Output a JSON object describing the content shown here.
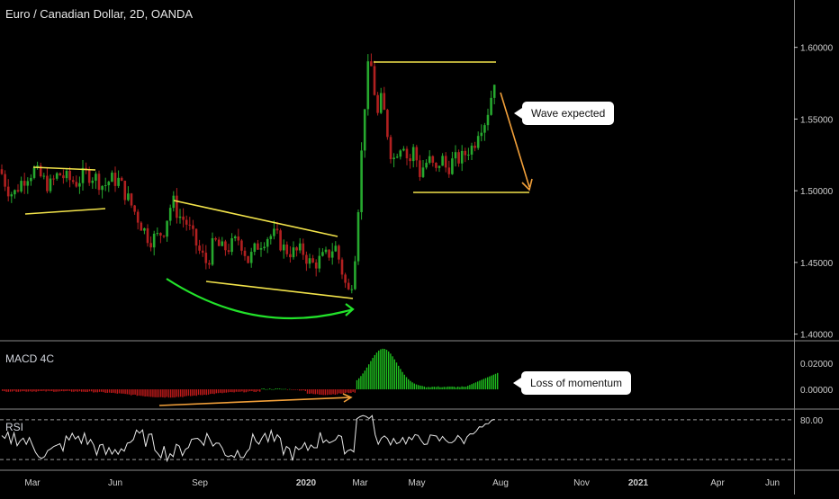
{
  "chart_data": {
    "type": "candlestick",
    "title": "Euro / Canadian Dollar, 2D, OANDA",
    "y_axis": {
      "ticks": [
        1.4,
        1.45,
        1.5,
        1.55,
        1.6
      ],
      "tick_labels": [
        "1.40000",
        "1.45000",
        "1.50000",
        "1.55000",
        "1.60000"
      ],
      "range": [
        1.396,
        1.628
      ]
    },
    "x_axis": {
      "tick_labels": [
        "Mar",
        "Jun",
        "Sep",
        "2020",
        "Mar",
        "May",
        "Aug",
        "Nov",
        "2021",
        "Apr",
        "Jun"
      ]
    },
    "price_path": [
      [
        0,
        1.515
      ],
      [
        8,
        1.502
      ],
      [
        15,
        1.497
      ],
      [
        22,
        1.505
      ],
      [
        30,
        1.511
      ],
      [
        38,
        1.514
      ],
      [
        46,
        1.509
      ],
      [
        55,
        1.503
      ],
      [
        65,
        1.512
      ],
      [
        75,
        1.508
      ],
      [
        85,
        1.506
      ],
      [
        95,
        1.512
      ],
      [
        105,
        1.51
      ],
      [
        115,
        1.503
      ],
      [
        123,
        1.508
      ],
      [
        132,
        1.507
      ],
      [
        140,
        1.497
      ],
      [
        150,
        1.485
      ],
      [
        158,
        1.475
      ],
      [
        166,
        1.466
      ],
      [
        175,
        1.468
      ],
      [
        182,
        1.473
      ],
      [
        188,
        1.487
      ],
      [
        192,
        1.493
      ],
      [
        198,
        1.483
      ],
      [
        206,
        1.479
      ],
      [
        214,
        1.468
      ],
      [
        222,
        1.457
      ],
      [
        230,
        1.449
      ],
      [
        238,
        1.465
      ],
      [
        246,
        1.459
      ],
      [
        256,
        1.461
      ],
      [
        266,
        1.467
      ],
      [
        276,
        1.451
      ],
      [
        286,
        1.462
      ],
      [
        296,
        1.468
      ],
      [
        306,
        1.469
      ],
      [
        316,
        1.459
      ],
      [
        326,
        1.457
      ],
      [
        336,
        1.458
      ],
      [
        346,
        1.448
      ],
      [
        356,
        1.452
      ],
      [
        364,
        1.455
      ],
      [
        372,
        1.462
      ],
      [
        378,
        1.449
      ],
      [
        383,
        1.436
      ],
      [
        387,
        1.429
      ],
      [
        390,
        1.433
      ],
      [
        395,
        1.46
      ],
      [
        399,
        1.5
      ],
      [
        403,
        1.54
      ],
      [
        407,
        1.578
      ],
      [
        411,
        1.592
      ],
      [
        415,
        1.575
      ],
      [
        419,
        1.551
      ],
      [
        424,
        1.565
      ],
      [
        430,
        1.542
      ],
      [
        436,
        1.52
      ],
      [
        442,
        1.53
      ],
      [
        448,
        1.535
      ],
      [
        454,
        1.518
      ],
      [
        460,
        1.53
      ],
      [
        466,
        1.512
      ],
      [
        472,
        1.519
      ],
      [
        478,
        1.521
      ],
      [
        484,
        1.512
      ],
      [
        490,
        1.524
      ],
      [
        496,
        1.515
      ],
      [
        502,
        1.52
      ],
      [
        508,
        1.522
      ],
      [
        514,
        1.523
      ],
      [
        520,
        1.529
      ],
      [
        526,
        1.531
      ],
      [
        532,
        1.545
      ],
      [
        538,
        1.548
      ],
      [
        544,
        1.56
      ],
      [
        548,
        1.575
      ],
      [
        552,
        1.586
      ]
    ],
    "indicators": {
      "macd": {
        "name": "MACD 4C",
        "tick_labels": [
          "0.02000",
          "0.00000"
        ],
        "range": [
          -0.013,
          0.035
        ]
      },
      "rsi": {
        "name": "RSI",
        "tick_labels": [
          "80.00"
        ],
        "levels": [
          80,
          30
        ]
      }
    },
    "annotations": [
      "Wave expected",
      "Loss of momentum"
    ]
  },
  "colors": {
    "background": "#000000",
    "up": "#26a82e",
    "down": "#b12020",
    "macd_up": "#1fbf1f",
    "macd_down": "#c01a1a",
    "yellow": "#f2e34a",
    "orange": "#f2a03a",
    "green_arc": "#22e22a",
    "rsi_line": "#e8e8e8",
    "axis_text": "#cfcfcf"
  }
}
